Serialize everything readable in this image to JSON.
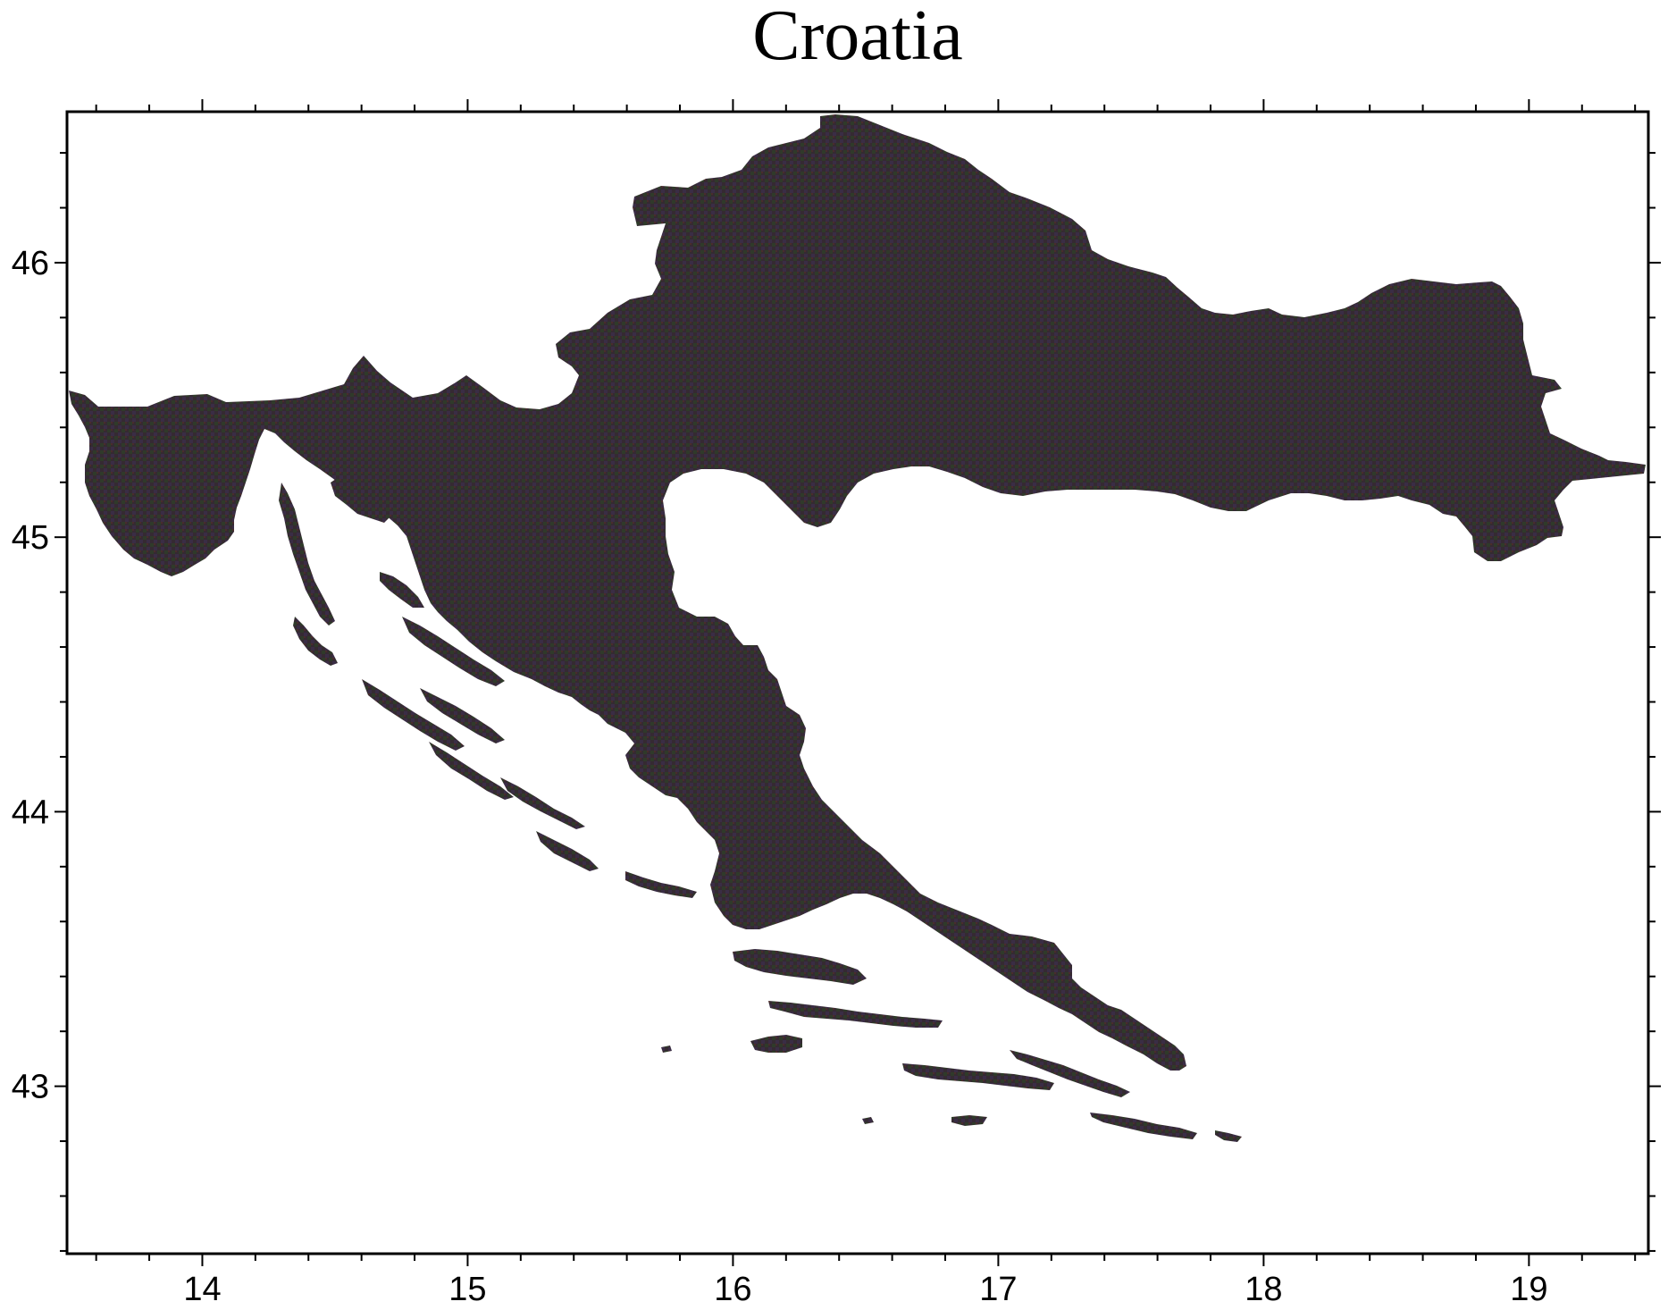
{
  "title": "Croatia",
  "map": {
    "region": "Croatia",
    "projection": "linear lon/lat",
    "lon_range": [
      13.49,
      19.45
    ],
    "lat_range": [
      42.39,
      46.55
    ],
    "land_color": "#3a2a30",
    "land_texture_colors": [
      "#2d3b26",
      "#3b2f4a",
      "#4a2b2b",
      "#2f4a2a"
    ],
    "water_color": "#ffffff",
    "frame_color": "#000000"
  },
  "axes": {
    "x_ticks": [
      "14",
      "15",
      "16",
      "17",
      "18",
      "19"
    ],
    "y_ticks": [
      "43",
      "44",
      "45",
      "46"
    ],
    "x_tick_values": [
      14,
      15,
      16,
      17,
      18,
      19
    ],
    "y_tick_values": [
      43,
      44,
      45,
      46
    ]
  }
}
